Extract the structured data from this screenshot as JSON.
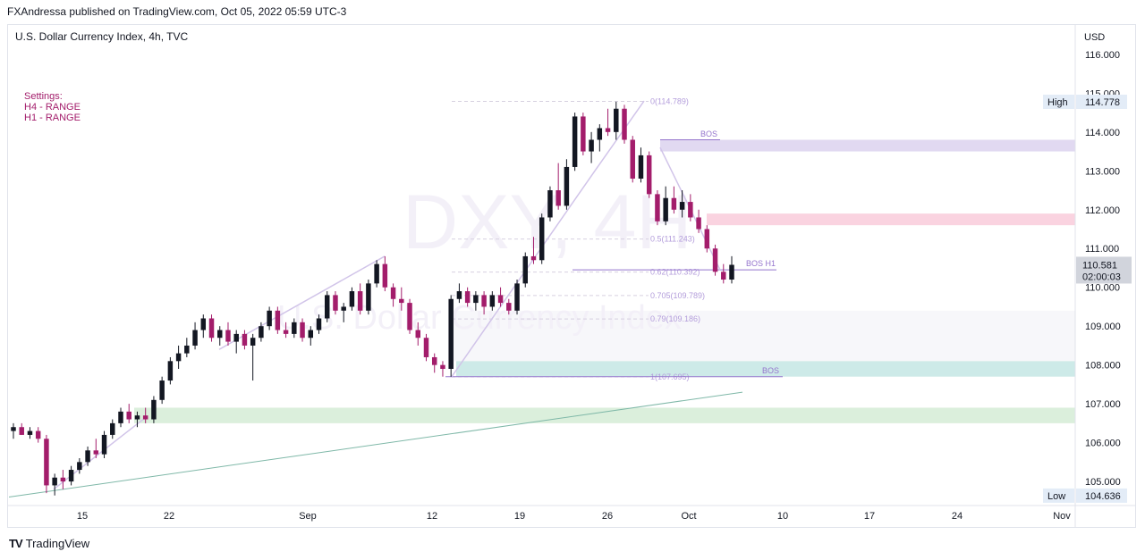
{
  "header": {
    "publish_line": "FXAndressa published on TradingView.com, Oct 05, 2022 05:59 UTC-3"
  },
  "footer": {
    "brand": "TradingView"
  },
  "chart_data": {
    "type": "candlestick",
    "title": "U.S. Dollar Currency Index, 4h, TVC",
    "watermark": "DXY, 4H",
    "watermark_sub": "U.S. Dollar Currency Index",
    "currency": "USD",
    "settings_lines": [
      "Settings:",
      "H4 - RANGE",
      "H1 - RANGE"
    ],
    "y_axis": {
      "range": [
        104.45,
        116.25
      ],
      "ticks": [
        "116.000",
        "115.000",
        "114.000",
        "113.000",
        "112.000",
        "111.000",
        "110.000",
        "109.000",
        "108.000",
        "107.000",
        "106.000",
        "105.000"
      ]
    },
    "x_axis": {
      "ticks": [
        "15",
        "22",
        "Sep",
        "12",
        "19",
        "26",
        "Oct",
        "10",
        "17",
        "24",
        "Nov"
      ]
    },
    "high": {
      "label": "High",
      "value": "114.778"
    },
    "low": {
      "label": "Low",
      "value": "104.636"
    },
    "last": {
      "price": "110.581",
      "countdown": "02:00:03"
    },
    "fib_levels": [
      {
        "label": "0(114.789)",
        "value": 114.789
      },
      {
        "label": "0.5(111.243)",
        "value": 111.243
      },
      {
        "label": "0.62(110.392)",
        "value": 110.392
      },
      {
        "label": "0.705(109.789)",
        "value": 109.789
      },
      {
        "label": "0.79(109.186)",
        "value": 109.186
      },
      {
        "label": "1(107.695)",
        "value": 107.695
      }
    ],
    "zones": [
      {
        "name": "supply-zone-purple",
        "from": 113.5,
        "to": 113.8,
        "color": "#d1c4e9"
      },
      {
        "name": "supply-zone-pink",
        "from": 111.6,
        "to": 111.9,
        "color": "#f8bbd0"
      },
      {
        "name": "demand-zone-teal",
        "from": 107.7,
        "to": 108.1,
        "color": "#b2dfdb"
      },
      {
        "name": "demand-zone-green",
        "from": 106.5,
        "to": 106.9,
        "color": "#c8e6c9"
      },
      {
        "name": "grey-band",
        "from": 108.1,
        "to": 109.4,
        "color": "#f0f0f5"
      }
    ],
    "annotations": [
      {
        "label": "BOS",
        "value": 113.8
      },
      {
        "label": "BOS H1",
        "value": 110.45
      },
      {
        "label": "BOS",
        "value": 107.7
      }
    ],
    "colors": {
      "up": "#131722",
      "down": "#a31d6b",
      "fib": "#b39ddb",
      "trend": "#7fb8a8"
    },
    "candles": [
      {
        "t": 0,
        "o": 106.3,
        "h": 106.5,
        "l": 106.1,
        "c": 106.4
      },
      {
        "t": 1,
        "o": 106.4,
        "h": 106.5,
        "l": 106.2,
        "c": 106.2
      },
      {
        "t": 2,
        "o": 106.2,
        "h": 106.4,
        "l": 106.1,
        "c": 106.3
      },
      {
        "t": 3,
        "o": 106.3,
        "h": 106.4,
        "l": 106.0,
        "c": 106.1
      },
      {
        "t": 4,
        "o": 106.1,
        "h": 106.2,
        "l": 104.7,
        "c": 104.9
      },
      {
        "t": 5,
        "o": 104.9,
        "h": 105.2,
        "l": 104.64,
        "c": 105.1
      },
      {
        "t": 6,
        "o": 105.1,
        "h": 105.3,
        "l": 104.8,
        "c": 105.0
      },
      {
        "t": 7,
        "o": 105.0,
        "h": 105.4,
        "l": 104.9,
        "c": 105.3
      },
      {
        "t": 8,
        "o": 105.3,
        "h": 105.6,
        "l": 105.2,
        "c": 105.5
      },
      {
        "t": 9,
        "o": 105.5,
        "h": 105.9,
        "l": 105.4,
        "c": 105.8
      },
      {
        "t": 10,
        "o": 105.8,
        "h": 106.1,
        "l": 105.6,
        "c": 105.7
      },
      {
        "t": 11,
        "o": 105.7,
        "h": 106.3,
        "l": 105.6,
        "c": 106.2
      },
      {
        "t": 12,
        "o": 106.2,
        "h": 106.6,
        "l": 106.1,
        "c": 106.5
      },
      {
        "t": 13,
        "o": 106.5,
        "h": 106.9,
        "l": 106.4,
        "c": 106.8
      },
      {
        "t": 14,
        "o": 106.8,
        "h": 107.0,
        "l": 106.5,
        "c": 106.6
      },
      {
        "t": 15,
        "o": 106.6,
        "h": 106.8,
        "l": 106.4,
        "c": 106.7
      },
      {
        "t": 16,
        "o": 106.7,
        "h": 106.9,
        "l": 106.5,
        "c": 106.6
      },
      {
        "t": 17,
        "o": 106.6,
        "h": 107.2,
        "l": 106.5,
        "c": 107.1
      },
      {
        "t": 18,
        "o": 107.1,
        "h": 107.7,
        "l": 107.0,
        "c": 107.6
      },
      {
        "t": 19,
        "o": 107.6,
        "h": 108.2,
        "l": 107.5,
        "c": 108.1
      },
      {
        "t": 20,
        "o": 108.1,
        "h": 108.5,
        "l": 107.9,
        "c": 108.3
      },
      {
        "t": 21,
        "o": 108.3,
        "h": 108.7,
        "l": 108.2,
        "c": 108.5
      },
      {
        "t": 22,
        "o": 108.5,
        "h": 109.1,
        "l": 108.4,
        "c": 108.9
      },
      {
        "t": 23,
        "o": 108.9,
        "h": 109.3,
        "l": 108.7,
        "c": 109.2
      },
      {
        "t": 24,
        "o": 109.2,
        "h": 109.3,
        "l": 108.6,
        "c": 108.7
      },
      {
        "t": 25,
        "o": 108.7,
        "h": 109.0,
        "l": 108.5,
        "c": 108.9
      },
      {
        "t": 26,
        "o": 108.9,
        "h": 109.1,
        "l": 108.5,
        "c": 108.6
      },
      {
        "t": 27,
        "o": 108.6,
        "h": 108.9,
        "l": 108.3,
        "c": 108.8
      },
      {
        "t": 28,
        "o": 108.8,
        "h": 108.9,
        "l": 108.4,
        "c": 108.5
      },
      {
        "t": 29,
        "o": 108.5,
        "h": 108.8,
        "l": 107.6,
        "c": 108.7
      },
      {
        "t": 30,
        "o": 108.7,
        "h": 109.1,
        "l": 108.6,
        "c": 109.0
      },
      {
        "t": 31,
        "o": 109.0,
        "h": 109.5,
        "l": 108.9,
        "c": 109.4
      },
      {
        "t": 32,
        "o": 109.4,
        "h": 109.5,
        "l": 108.8,
        "c": 108.9
      },
      {
        "t": 33,
        "o": 108.9,
        "h": 109.1,
        "l": 108.7,
        "c": 108.8
      },
      {
        "t": 34,
        "o": 108.8,
        "h": 109.2,
        "l": 108.7,
        "c": 109.1
      },
      {
        "t": 35,
        "o": 109.1,
        "h": 109.2,
        "l": 108.6,
        "c": 108.7
      },
      {
        "t": 36,
        "o": 108.7,
        "h": 109.0,
        "l": 108.5,
        "c": 108.9
      },
      {
        "t": 37,
        "o": 108.9,
        "h": 109.3,
        "l": 108.8,
        "c": 109.2
      },
      {
        "t": 38,
        "o": 109.2,
        "h": 109.9,
        "l": 109.1,
        "c": 109.8
      },
      {
        "t": 39,
        "o": 109.8,
        "h": 109.9,
        "l": 109.3,
        "c": 109.4
      },
      {
        "t": 40,
        "o": 109.4,
        "h": 109.6,
        "l": 109.1,
        "c": 109.5
      },
      {
        "t": 41,
        "o": 109.5,
        "h": 110.0,
        "l": 109.4,
        "c": 109.9
      },
      {
        "t": 42,
        "o": 109.9,
        "h": 110.1,
        "l": 109.3,
        "c": 109.4
      },
      {
        "t": 43,
        "o": 109.4,
        "h": 110.2,
        "l": 109.3,
        "c": 110.1
      },
      {
        "t": 44,
        "o": 110.1,
        "h": 110.7,
        "l": 110.0,
        "c": 110.6
      },
      {
        "t": 45,
        "o": 110.6,
        "h": 110.8,
        "l": 109.9,
        "c": 110.0
      },
      {
        "t": 46,
        "o": 110.0,
        "h": 110.1,
        "l": 109.5,
        "c": 109.7
      },
      {
        "t": 47,
        "o": 109.7,
        "h": 110.0,
        "l": 109.4,
        "c": 109.6
      },
      {
        "t": 48,
        "o": 109.6,
        "h": 109.7,
        "l": 108.8,
        "c": 108.9
      },
      {
        "t": 49,
        "o": 108.9,
        "h": 109.1,
        "l": 108.5,
        "c": 108.7
      },
      {
        "t": 50,
        "o": 108.7,
        "h": 108.8,
        "l": 108.1,
        "c": 108.2
      },
      {
        "t": 51,
        "o": 108.2,
        "h": 108.3,
        "l": 107.8,
        "c": 108.0
      },
      {
        "t": 52,
        "o": 108.0,
        "h": 108.1,
        "l": 107.7,
        "c": 107.9
      },
      {
        "t": 53,
        "o": 107.9,
        "h": 109.8,
        "l": 107.7,
        "c": 109.7
      },
      {
        "t": 54,
        "o": 109.7,
        "h": 110.1,
        "l": 109.6,
        "c": 109.9
      },
      {
        "t": 55,
        "o": 109.9,
        "h": 110.0,
        "l": 109.5,
        "c": 109.6
      },
      {
        "t": 56,
        "o": 109.6,
        "h": 109.9,
        "l": 109.4,
        "c": 109.8
      },
      {
        "t": 57,
        "o": 109.8,
        "h": 109.9,
        "l": 109.3,
        "c": 109.5
      },
      {
        "t": 58,
        "o": 109.5,
        "h": 109.9,
        "l": 109.4,
        "c": 109.8
      },
      {
        "t": 59,
        "o": 109.8,
        "h": 110.0,
        "l": 109.5,
        "c": 109.6
      },
      {
        "t": 60,
        "o": 109.6,
        "h": 109.7,
        "l": 109.3,
        "c": 109.4
      },
      {
        "t": 61,
        "o": 109.4,
        "h": 110.2,
        "l": 109.3,
        "c": 110.1
      },
      {
        "t": 62,
        "o": 110.1,
        "h": 110.9,
        "l": 110.0,
        "c": 110.8
      },
      {
        "t": 63,
        "o": 110.8,
        "h": 111.3,
        "l": 110.6,
        "c": 110.7
      },
      {
        "t": 64,
        "o": 110.7,
        "h": 111.9,
        "l": 110.6,
        "c": 111.8
      },
      {
        "t": 65,
        "o": 111.8,
        "h": 112.6,
        "l": 111.7,
        "c": 112.5
      },
      {
        "t": 66,
        "o": 112.5,
        "h": 113.2,
        "l": 112.0,
        "c": 112.1
      },
      {
        "t": 67,
        "o": 112.1,
        "h": 113.3,
        "l": 112.0,
        "c": 113.1
      },
      {
        "t": 68,
        "o": 113.1,
        "h": 114.5,
        "l": 113.0,
        "c": 114.4
      },
      {
        "t": 69,
        "o": 114.4,
        "h": 114.5,
        "l": 113.4,
        "c": 113.5
      },
      {
        "t": 70,
        "o": 113.5,
        "h": 114.0,
        "l": 113.2,
        "c": 113.8
      },
      {
        "t": 71,
        "o": 113.8,
        "h": 114.2,
        "l": 113.5,
        "c": 114.1
      },
      {
        "t": 72,
        "o": 114.1,
        "h": 114.6,
        "l": 113.9,
        "c": 114.0
      },
      {
        "t": 73,
        "o": 114.0,
        "h": 114.78,
        "l": 113.8,
        "c": 114.6
      },
      {
        "t": 74,
        "o": 114.6,
        "h": 114.7,
        "l": 113.7,
        "c": 113.8
      },
      {
        "t": 75,
        "o": 113.8,
        "h": 113.9,
        "l": 112.7,
        "c": 112.8
      },
      {
        "t": 76,
        "o": 112.8,
        "h": 113.6,
        "l": 112.7,
        "c": 113.4
      },
      {
        "t": 77,
        "o": 113.4,
        "h": 113.5,
        "l": 112.3,
        "c": 112.4
      },
      {
        "t": 78,
        "o": 112.4,
        "h": 112.5,
        "l": 111.6,
        "c": 111.7
      },
      {
        "t": 79,
        "o": 111.7,
        "h": 112.6,
        "l": 111.6,
        "c": 112.3
      },
      {
        "t": 80,
        "o": 112.3,
        "h": 112.6,
        "l": 111.9,
        "c": 112.0
      },
      {
        "t": 81,
        "o": 112.0,
        "h": 112.5,
        "l": 111.8,
        "c": 112.2
      },
      {
        "t": 82,
        "o": 112.2,
        "h": 112.4,
        "l": 111.7,
        "c": 111.8
      },
      {
        "t": 83,
        "o": 111.8,
        "h": 112.0,
        "l": 111.4,
        "c": 111.5
      },
      {
        "t": 84,
        "o": 111.5,
        "h": 111.6,
        "l": 110.9,
        "c": 111.0
      },
      {
        "t": 85,
        "o": 111.0,
        "h": 111.1,
        "l": 110.3,
        "c": 110.4
      },
      {
        "t": 86,
        "o": 110.4,
        "h": 110.6,
        "l": 110.1,
        "c": 110.2
      },
      {
        "t": 87,
        "o": 110.2,
        "h": 110.8,
        "l": 110.1,
        "c": 110.58
      }
    ]
  }
}
